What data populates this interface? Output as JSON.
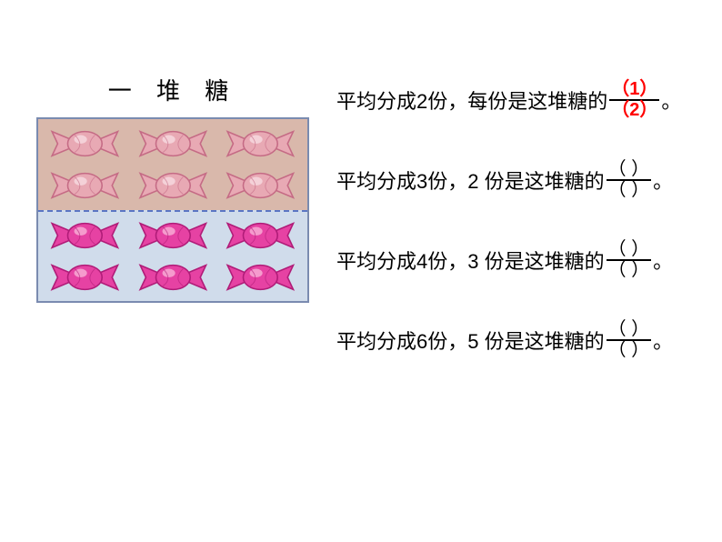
{
  "title": "一 堆 糖",
  "candy_box": {
    "top_half": {
      "bg": "#d9b8ab",
      "rows": [
        [
          1,
          1,
          1
        ],
        [
          1,
          1,
          1
        ]
      ],
      "candy_color": "#e8a9b4",
      "candy_outline": "#c56b85",
      "candy_highlight": "#f6d8de"
    },
    "bot_half": {
      "bg": "#d0dceb",
      "rows": [
        [
          1,
          1,
          1
        ],
        [
          1,
          1,
          1
        ]
      ],
      "candy_color": "#e642a3",
      "candy_outline": "#b01c78",
      "candy_highlight": "#f7aad5"
    },
    "divider_color": "#5b76c4",
    "border_color": "#7a8bb0"
  },
  "problems": [
    {
      "text": "平均分成2份，每份是这堆糖的",
      "num": "（1）",
      "den": "（2）",
      "filled": true
    },
    {
      "text": "平均分成3份，2 份是这堆糖的",
      "num": "（ ）",
      "den": "（ ）",
      "filled": false
    },
    {
      "text": "平均分成4份，3 份是这堆糖的",
      "num": "（ ）",
      "den": "（ ）",
      "filled": false
    },
    {
      "text": "平均分成6份，5 份是这堆糖的",
      "num": "（ ）",
      "den": "（ ）",
      "filled": false
    }
  ],
  "period": "。",
  "colors": {
    "accent_red": "#ff0000",
    "text": "#000000",
    "bg": "#ffffff"
  }
}
